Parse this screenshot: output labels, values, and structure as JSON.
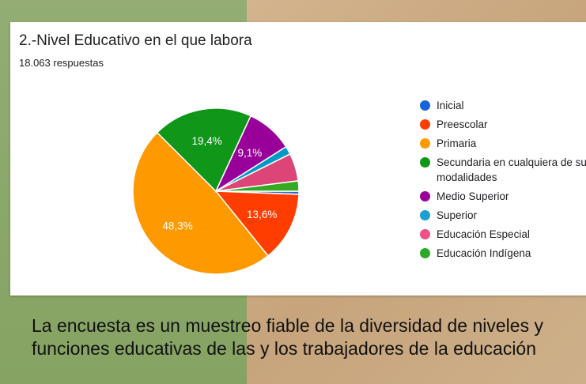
{
  "question": {
    "title": "2.-Nivel Educativo en el que labora",
    "responses": "18.063 respuestas"
  },
  "chart_data": {
    "type": "pie",
    "title": "2.-Nivel Educativo en el que labora",
    "total_responses": 18063,
    "slices": [
      {
        "name": "Inicial",
        "value": 0.6,
        "color": "#3366cc",
        "label": ""
      },
      {
        "name": "Preescolar",
        "value": 13.6,
        "color": "#ff3d00",
        "label": "13,6%"
      },
      {
        "name": "Primaria",
        "value": 48.3,
        "color": "#ff9900",
        "label": "48,3%"
      },
      {
        "name": "Secundaria en cualquiera de sus modalidades",
        "value": 19.4,
        "color": "#109618",
        "label": "19,4%"
      },
      {
        "name": "Medio Superior",
        "value": 9.1,
        "color": "#990099",
        "label": "9,1%"
      },
      {
        "name": "Superior",
        "value": 1.6,
        "color": "#0099c6",
        "label": ""
      },
      {
        "name": "Educación Especial",
        "value": 5.4,
        "color": "#dd4477",
        "label": ""
      },
      {
        "name": "Educación Indígena",
        "value": 2.0,
        "color": "#33aa22",
        "label": ""
      }
    ],
    "legend_position": "right"
  },
  "legend": [
    {
      "label": "Inicial",
      "color": "#1565d8"
    },
    {
      "label": "Preescolar",
      "color": "#ff3d00"
    },
    {
      "label": "Primaria",
      "color": "#ff9900"
    },
    {
      "label": "Secundaria en cualquiera de sus modalidades",
      "color": "#109618"
    },
    {
      "label": "Medio Superior",
      "color": "#990099"
    },
    {
      "label": "Superior",
      "color": "#1a9fd0"
    },
    {
      "label": "Educación Especial",
      "color": "#ee5088"
    },
    {
      "label": "Educación Indígena",
      "color": "#2ea82a"
    }
  ],
  "caption": "La encuesta es un muestreo fiable de la diversidad de niveles y funciones educativas de las y los trabajadores de la educación"
}
